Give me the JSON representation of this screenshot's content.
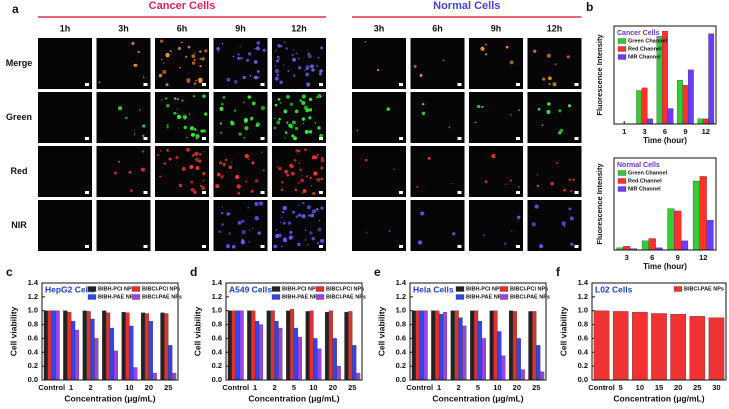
{
  "microscopy": {
    "panel_label": "a",
    "groups": [
      {
        "title": "Cancer Cells",
        "times": [
          "1h",
          "3h",
          "6h",
          "9h",
          "12h"
        ]
      },
      {
        "title": "Normal Cells",
        "times": [
          "3h",
          "6h",
          "9h",
          "12h"
        ]
      }
    ],
    "rows": [
      "Merge",
      "Green",
      "Red",
      "NIR"
    ]
  },
  "chart_data": [
    {
      "type": "bar",
      "panel_label": "b",
      "title": "Cancer Cells",
      "x_label": "Time (hour)",
      "y_label": "Fluorescence Intensity",
      "categories": [
        "1",
        "3",
        "6",
        "9",
        "12"
      ],
      "ylim": [
        0,
        380
      ],
      "legend": "upper left",
      "series": [
        {
          "name": "Green Channel",
          "color": "#33cc33",
          "values": [
            0,
            130,
            340,
            170,
            20
          ]
        },
        {
          "name": "Red Channel",
          "color": "#ff3030",
          "values": [
            0,
            140,
            360,
            150,
            20
          ]
        },
        {
          "name": "NIR Channel",
          "color": "#6a3cff",
          "values": [
            0,
            20,
            60,
            210,
            350
          ]
        }
      ]
    },
    {
      "type": "bar",
      "title": "Normal Cells",
      "x_label": "Time (hour)",
      "y_label": "Fluorescence Intensity",
      "categories": [
        "3",
        "6",
        "9",
        "12"
      ],
      "ylim": [
        0,
        200
      ],
      "legend": "upper left",
      "series": [
        {
          "name": "Green Channel",
          "color": "#33cc33",
          "values": [
            5,
            20,
            90,
            150
          ]
        },
        {
          "name": "Red Channel",
          "color": "#ff3030",
          "values": [
            8,
            25,
            85,
            160
          ]
        },
        {
          "name": "NIR Channel",
          "color": "#6a3cff",
          "values": [
            3,
            5,
            20,
            65
          ]
        }
      ]
    },
    {
      "type": "bar",
      "panel_label": "c",
      "title": "HepG2 Cells",
      "x_label": "Concentration (μg/mL)",
      "y_label": "Cell viability",
      "categories": [
        "Control",
        "1",
        "2",
        "5",
        "10",
        "20",
        "25"
      ],
      "ylim": [
        0,
        1.4
      ],
      "legend": "upper right",
      "yticks": [
        {
          "value": 0,
          "label": "0.0"
        },
        {
          "value": 0.2,
          "label": "0.2"
        },
        {
          "value": 0.4,
          "label": "0.4"
        },
        {
          "value": 0.6,
          "label": "0.6"
        },
        {
          "value": 0.8,
          "label": "0.8"
        },
        {
          "value": 1,
          "label": "1.0"
        },
        {
          "value": 1.2,
          "label": "1.2"
        },
        {
          "value": 1.4,
          "label": "1.4"
        }
      ],
      "series": [
        {
          "name": "BIBH-PCl NPs",
          "color": "#222222",
          "values": [
            1.0,
            1.0,
            1.0,
            1.0,
            0.98,
            0.97,
            0.97
          ]
        },
        {
          "name": "BIBCl-PCl NPs",
          "color": "#e03030",
          "values": [
            1.0,
            0.98,
            0.99,
            0.97,
            0.97,
            0.96,
            0.96
          ]
        },
        {
          "name": "BIBH-PAE NPs",
          "color": "#3344ee",
          "values": [
            1.0,
            0.85,
            0.88,
            0.75,
            0.78,
            0.85,
            0.5
          ]
        },
        {
          "name": "BIBCl-PAE NPs",
          "color": "#9b45e0",
          "values": [
            1.0,
            0.72,
            0.6,
            0.42,
            0.18,
            0.1,
            0.1
          ]
        }
      ]
    },
    {
      "type": "bar",
      "panel_label": "d",
      "title": "A549 Cells",
      "x_label": "Concentration (μg/mL)",
      "y_label": "Cell viability",
      "categories": [
        "Control",
        "1",
        "2",
        "5",
        "10",
        "20",
        "25"
      ],
      "ylim": [
        0,
        1.4
      ],
      "legend": "upper right",
      "yticks": [
        {
          "value": 0,
          "label": "0.0"
        },
        {
          "value": 0.2,
          "label": "0.2"
        },
        {
          "value": 0.4,
          "label": "0.4"
        },
        {
          "value": 0.6,
          "label": "0.6"
        },
        {
          "value": 0.8,
          "label": "0.8"
        },
        {
          "value": 1,
          "label": "1.0"
        },
        {
          "value": 1.2,
          "label": "1.2"
        },
        {
          "value": 1.4,
          "label": "1.4"
        }
      ],
      "series": [
        {
          "name": "BIBH-PCl NPs",
          "color": "#222222",
          "values": [
            1.0,
            1.0,
            1.0,
            1.0,
            0.99,
            0.98,
            0.98
          ]
        },
        {
          "name": "BIBCl-PCl NPs",
          "color": "#e03030",
          "values": [
            1.0,
            1.0,
            1.0,
            1.02,
            1.0,
            1.0,
            0.99
          ]
        },
        {
          "name": "BIBH-PAE NPs",
          "color": "#3344ee",
          "values": [
            1.0,
            0.85,
            0.85,
            0.75,
            0.6,
            0.6,
            0.5
          ]
        },
        {
          "name": "BIBCl-PAE NPs",
          "color": "#9b45e0",
          "values": [
            1.0,
            0.8,
            0.75,
            0.62,
            0.45,
            0.2,
            0.1
          ]
        }
      ]
    },
    {
      "type": "bar",
      "panel_label": "e",
      "title": "Hela Cells",
      "x_label": "Concentration (μg/mL)",
      "y_label": "Cell viability",
      "categories": [
        "Control",
        "1",
        "2",
        "5",
        "10",
        "20",
        "25"
      ],
      "ylim": [
        0,
        1.4
      ],
      "legend": "upper right",
      "yticks": [
        {
          "value": 0,
          "label": "0.0"
        },
        {
          "value": 0.2,
          "label": "0.2"
        },
        {
          "value": 0.4,
          "label": "0.4"
        },
        {
          "value": 0.6,
          "label": "0.6"
        },
        {
          "value": 0.8,
          "label": "0.8"
        },
        {
          "value": 1,
          "label": "1.0"
        },
        {
          "value": 1.2,
          "label": "1.2"
        },
        {
          "value": 1.4,
          "label": "1.4"
        }
      ],
      "series": [
        {
          "name": "BIBH-PCl NPs",
          "color": "#222222",
          "values": [
            1.0,
            1.0,
            1.0,
            1.0,
            1.0,
            1.0,
            0.99
          ]
        },
        {
          "name": "BIBCl-PCl NPs",
          "color": "#e03030",
          "values": [
            1.0,
            1.0,
            1.0,
            1.0,
            1.0,
            0.99,
            0.99
          ]
        },
        {
          "name": "BIBH-PAE NPs",
          "color": "#3344ee",
          "values": [
            1.0,
            0.95,
            0.9,
            0.85,
            0.7,
            0.6,
            0.5
          ]
        },
        {
          "name": "BIBCl-PAE NPs",
          "color": "#9b45e0",
          "values": [
            1.0,
            0.98,
            0.78,
            0.6,
            0.35,
            0.15,
            0.12
          ]
        }
      ]
    },
    {
      "type": "bar",
      "panel_label": "f",
      "title": "L02 Cells",
      "x_label": "Concentration (μg/mL)",
      "y_label": "Cell viability",
      "categories": [
        "Control",
        "5",
        "10",
        "15",
        "20",
        "25",
        "30"
      ],
      "ylim": [
        0,
        1.4
      ],
      "legend": "upper right",
      "yticks": [
        {
          "value": 0,
          "label": "0.0"
        },
        {
          "value": 0.2,
          "label": "0.2"
        },
        {
          "value": 0.4,
          "label": "0.4"
        },
        {
          "value": 0.6,
          "label": "0.6"
        },
        {
          "value": 0.8,
          "label": "0.8"
        },
        {
          "value": 1,
          "label": "1.0"
        },
        {
          "value": 1.2,
          "label": "1.2"
        },
        {
          "value": 1.4,
          "label": "1.4"
        }
      ],
      "series": [
        {
          "name": "BIBCl-PAE NPs",
          "color": "#ee3333",
          "values": [
            1.0,
            0.99,
            0.98,
            0.96,
            0.95,
            0.92,
            0.9
          ]
        }
      ]
    }
  ]
}
